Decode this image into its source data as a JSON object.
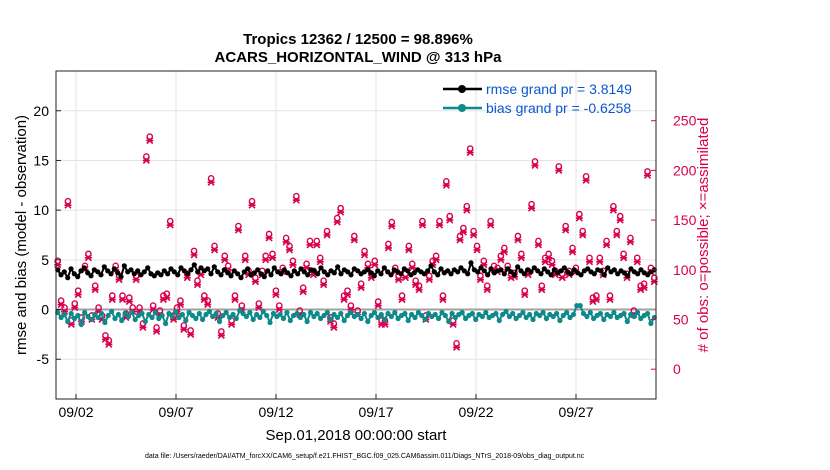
{
  "chart_data": {
    "type": "line",
    "title_line1": "Tropics 12362 / 12500 = 98.896%",
    "title_line2": "ACARS_HORIZONTAL_WIND @ 313 hPa",
    "xlabel": "Sep.01,2018 00:00:00 start",
    "ylabel_left": "rmse and bias (model - observation)",
    "ylabel_right": "# of obs: o=possible; ×=assimilated",
    "footer": "data file: /Users/raeder/DAI/ATM_forcXX/CAM6_setup/f.e21.FHIST_BGC.f09_025.CAM6assim.011/Diags_NTrS_2018-09/obs_diag_output.nc",
    "x_ticks": [
      "09/02",
      "09/07",
      "09/12",
      "09/17",
      "09/22",
      "09/27"
    ],
    "x_tick_days": [
      2,
      7,
      12,
      17,
      22,
      27
    ],
    "xlim_days": [
      1,
      31
    ],
    "ylim_left": [
      -9,
      24
    ],
    "y_ticks_left": [
      -5,
      0,
      5,
      10,
      15,
      20
    ],
    "ylim_right": [
      -30,
      300
    ],
    "y_ticks_right": [
      0,
      50,
      100,
      150,
      200,
      250
    ],
    "grid": true,
    "legend_position": "top-right",
    "colors": {
      "rmse": "#000000",
      "bias": "#0f8a8a",
      "counts": "#d9004f",
      "zero_line": "#a0a0a0",
      "legend_text": "#0b57d0"
    },
    "series": [
      {
        "name": "rmse grand pr = 3.8149",
        "values": [
          4.0,
          3.5,
          3.8,
          3.2,
          4.1,
          3.6,
          3.3,
          3.9,
          4.2,
          3.7,
          3.4,
          4.0,
          3.8,
          3.5,
          4.3,
          3.9,
          3.6,
          4.1,
          3.7,
          3.3,
          4.4,
          3.8,
          4.0,
          3.6,
          3.9,
          3.5,
          3.8,
          4.2,
          3.6,
          3.4,
          3.7,
          3.5,
          3.9,
          3.6,
          4.1,
          3.8,
          3.5,
          4.2,
          3.9,
          3.6,
          4.0,
          4.5,
          3.8,
          4.2,
          3.9,
          4.1,
          3.6,
          4.3,
          3.8,
          3.5,
          4.0,
          3.7,
          3.4,
          3.9,
          3.6,
          3.2,
          3.8,
          4.1,
          3.5,
          3.7,
          4.0,
          3.6,
          3.3,
          3.9,
          3.5,
          4.2,
          3.8,
          3.6,
          4.0,
          3.7,
          3.4,
          3.9,
          3.6,
          4.1,
          3.8,
          3.5,
          4.0,
          3.9,
          3.6,
          4.2,
          3.8,
          3.5,
          3.9,
          3.7,
          4.3,
          3.6,
          4.0,
          3.8,
          3.5,
          4.1,
          3.9,
          3.6,
          3.8,
          4.0,
          3.7,
          3.4,
          3.9,
          3.6,
          4.2,
          3.8,
          3.5,
          4.0,
          3.8,
          3.6,
          4.1,
          3.9,
          3.5,
          3.7,
          4.0,
          3.8,
          3.6,
          3.9,
          4.4,
          3.8,
          3.5,
          4.1,
          3.7,
          3.9,
          3.6,
          4.0,
          3.8,
          4.2,
          3.9,
          3.6,
          4.7,
          4.0,
          3.8,
          4.2,
          3.9,
          3.5,
          4.1,
          3.7,
          3.9,
          4.0,
          3.6,
          4.1,
          3.8,
          3.5,
          4.3,
          3.9,
          3.6,
          4.0,
          3.8,
          4.2,
          3.9,
          3.6,
          4.1,
          3.8,
          3.5,
          4.0,
          3.7,
          3.9,
          4.2,
          3.8,
          3.6,
          4.0,
          3.7,
          3.5,
          3.9,
          4.1,
          3.8,
          3.6,
          4.0,
          3.9,
          3.5,
          4.2,
          3.8,
          4.0,
          3.6,
          3.9,
          3.7,
          3.4,
          4.1,
          3.8,
          3.6,
          4.0,
          3.7,
          3.5,
          3.8,
          4.0
        ]
      },
      {
        "name": "bias grand pr = -0.6258",
        "values": [
          -0.3,
          -0.8,
          -0.5,
          -1.2,
          -0.4,
          -0.9,
          -0.6,
          -1.5,
          -0.3,
          -0.7,
          -1.0,
          -0.5,
          -0.8,
          -0.4,
          -1.3,
          -0.6,
          -0.2,
          -0.9,
          -0.5,
          -1.1,
          -0.4,
          -0.7,
          -0.3,
          -1.0,
          -0.6,
          -0.4,
          -1.2,
          -0.5,
          -0.8,
          -0.3,
          -0.9,
          -0.6,
          -1.4,
          -0.4,
          -0.7,
          -0.2,
          -0.8,
          -0.5,
          -1.1,
          -0.3,
          -0.6,
          -0.9,
          -0.4,
          -1.0,
          -0.5,
          -0.2,
          -0.7,
          -0.4,
          -1.2,
          -0.6,
          -0.3,
          -0.8,
          -0.5,
          -0.9,
          -0.1,
          -0.4,
          -0.7,
          -0.3,
          -1.0,
          -0.5,
          -0.8,
          -0.2,
          -0.6,
          -1.3,
          -0.4,
          -0.7,
          -0.5,
          -0.9,
          -0.3,
          -1.1,
          -0.6,
          -0.4,
          -0.8,
          -0.5,
          -1.2,
          -0.3,
          -0.7,
          -0.4,
          -0.9,
          -0.6,
          -0.3,
          -1.0,
          -0.5,
          -0.8,
          -0.4,
          -1.1,
          -0.6,
          -0.3,
          -0.7,
          -0.5,
          -0.9,
          -0.4,
          -1.2,
          -0.6,
          -0.3,
          -0.8,
          -0.5,
          -1.0,
          -0.4,
          -0.7,
          -0.3,
          -0.9,
          -0.6,
          -0.4,
          -1.1,
          -0.5,
          -0.8,
          -0.3,
          -0.6,
          -1.0,
          -0.4,
          -0.7,
          -0.5,
          -0.9,
          -0.3,
          -0.6,
          -1.2,
          -0.4,
          -0.8,
          -0.5,
          -0.3,
          -0.9,
          -0.6,
          -0.4,
          -1.0,
          -0.5,
          -0.7,
          -0.3,
          -0.8,
          -0.6,
          -0.4,
          -1.1,
          -0.5,
          -0.2,
          -0.7,
          -0.4,
          -0.9,
          -0.6,
          -0.3,
          -0.8,
          -0.5,
          -1.0,
          -0.4,
          -0.6,
          -0.3,
          -0.9,
          -0.5,
          -0.7,
          -0.4,
          -1.1,
          -0.6,
          -0.3,
          -0.8,
          -0.5,
          0.4,
          0.4,
          -0.4,
          -0.7,
          -0.3,
          -0.9,
          -0.6,
          -0.4,
          -1.0,
          -0.5,
          -0.7,
          -0.3,
          -0.8,
          -0.6,
          -0.4,
          -1.2,
          -0.5,
          -0.7,
          -0.3,
          -0.9,
          -0.6,
          -0.4,
          -1.4,
          -0.8
        ]
      }
    ],
    "count_series": {
      "name": "# of obs",
      "values": [
        105,
        65,
        58,
        165,
        45,
        62,
        75,
        48,
        100,
        112,
        50,
        80,
        58,
        50,
        30,
        25,
        70,
        100,
        90,
        70,
        52,
        68,
        58,
        90,
        58,
        42,
        210,
        230,
        60,
        38,
        55,
        70,
        72,
        145,
        50,
        58,
        65,
        40,
        92,
        35,
        115,
        85,
        95,
        70,
        65,
        188,
        120,
        52,
        34,
        110,
        100,
        45,
        70,
        140,
        60,
        110,
        95,
        165,
        88,
        62,
        95,
        110,
        132,
        112,
        75,
        60,
        98,
        128,
        120,
        105,
        170,
        55,
        78,
        102,
        125,
        95,
        125,
        108,
        85,
        135,
        48,
        42,
        148,
        158,
        70,
        75,
        60,
        130,
        55,
        82,
        115,
        102,
        92,
        105,
        64,
        45,
        45,
        122,
        144,
        98,
        90,
        70,
        92,
        120,
        102,
        85,
        80,
        145,
        50,
        90,
        105,
        110,
        145,
        70,
        185,
        150,
        45,
        22,
        130,
        138,
        160,
        218,
        135,
        120,
        90,
        105,
        80,
        145,
        100,
        98,
        110,
        118,
        100,
        92,
        93,
        130,
        112,
        75,
        95,
        162,
        205,
        125,
        80,
        108,
        112,
        105,
        95,
        200,
        92,
        140,
        95,
        118,
        98,
        152,
        135,
        190,
        108,
        68,
        70,
        108,
        95,
        125,
        70,
        160,
        135,
        150,
        112,
        92,
        128,
        55,
        108,
        80,
        82,
        195,
        98,
        88
      ]
    }
  }
}
